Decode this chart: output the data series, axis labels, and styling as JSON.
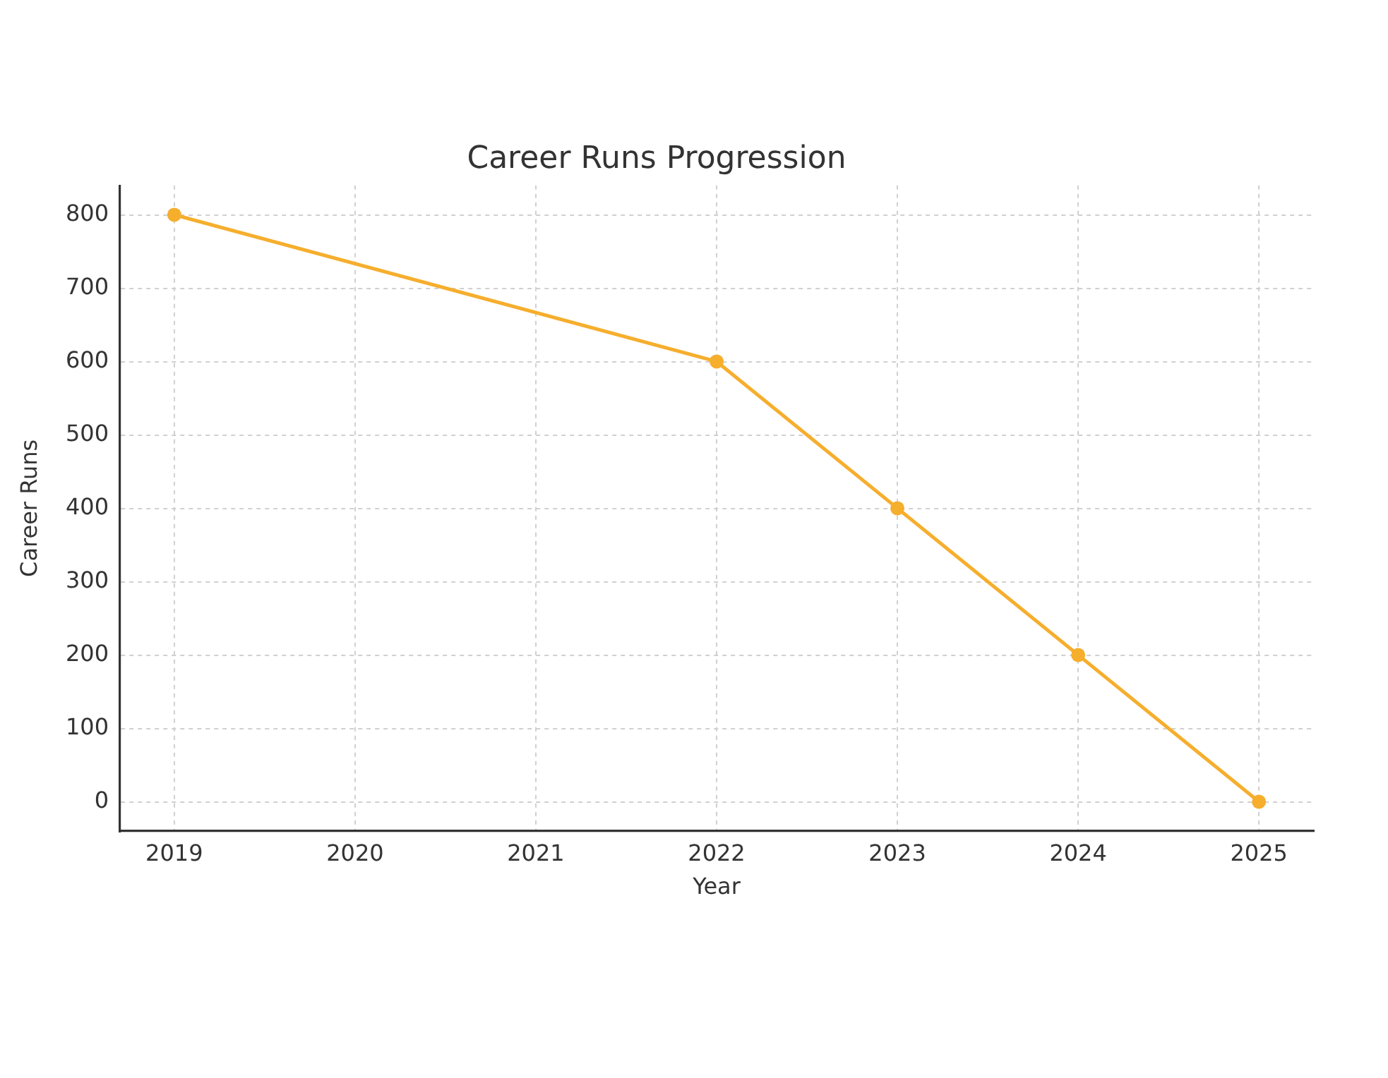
{
  "chart_data": {
    "type": "line",
    "title": "Career Runs Progression",
    "xlabel": "Year",
    "ylabel": "Career Runs",
    "x": [
      2019,
      2022,
      2023,
      2024,
      2025
    ],
    "series": [
      {
        "color": "#f6ae2d",
        "values": [
          800,
          600,
          400,
          200,
          0
        ]
      }
    ],
    "xlim": [
      2018.7,
      2025.3
    ],
    "xticks": [
      2019,
      2020,
      2021,
      2022,
      2023,
      2024,
      2025
    ],
    "ylim": [
      -40,
      840
    ],
    "yticks": [
      0,
      100,
      200,
      300,
      400,
      500,
      600,
      700,
      800
    ],
    "grid": true,
    "marker": "circle",
    "line_style": "solid"
  }
}
